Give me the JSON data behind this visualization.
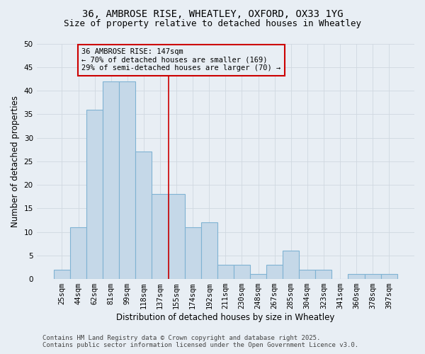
{
  "title_line1": "36, AMBROSE RISE, WHEATLEY, OXFORD, OX33 1YG",
  "title_line2": "Size of property relative to detached houses in Wheatley",
  "xlabel": "Distribution of detached houses by size in Wheatley",
  "ylabel": "Number of detached properties",
  "categories": [
    "25sqm",
    "44sqm",
    "62sqm",
    "81sqm",
    "99sqm",
    "118sqm",
    "137sqm",
    "155sqm",
    "174sqm",
    "192sqm",
    "211sqm",
    "230sqm",
    "248sqm",
    "267sqm",
    "285sqm",
    "304sqm",
    "323sqm",
    "341sqm",
    "360sqm",
    "378sqm",
    "397sqm"
  ],
  "values": [
    2,
    11,
    36,
    42,
    42,
    27,
    18,
    18,
    11,
    12,
    3,
    3,
    1,
    3,
    6,
    2,
    2,
    0,
    1,
    1,
    1
  ],
  "bar_color": "#c5d8e8",
  "bar_edgecolor": "#7fb3d3",
  "bar_linewidth": 0.8,
  "ylim": [
    0,
    50
  ],
  "yticks": [
    0,
    5,
    10,
    15,
    20,
    25,
    30,
    35,
    40,
    45,
    50
  ],
  "grid_color": "#d0d8e0",
  "background_color": "#e8eef4",
  "annotation_box_text": "36 AMBROSE RISE: 147sqm\n← 70% of detached houses are smaller (169)\n29% of semi-detached houses are larger (70) →",
  "annotation_box_color": "#cc0000",
  "vline_x_index": 6.5,
  "vline_color": "#cc0000",
  "footer_line1": "Contains HM Land Registry data © Crown copyright and database right 2025.",
  "footer_line2": "Contains public sector information licensed under the Open Government Licence v3.0.",
  "title_fontsize": 10,
  "subtitle_fontsize": 9,
  "axis_label_fontsize": 8.5,
  "tick_fontsize": 7.5,
  "annotation_fontsize": 7.5,
  "footer_fontsize": 6.5
}
